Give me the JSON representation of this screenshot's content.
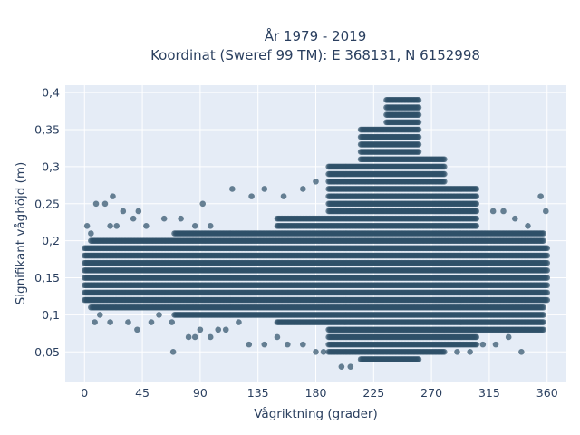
{
  "chart_data": {
    "type": "scatter",
    "title": [
      "År 1979 - 2019",
      "Koordinat (Sweref 99 TM): E 368131, N 6152998"
    ],
    "xlabel": "Vågriktning (grader)",
    "ylabel": "Signifikant våghöjd (m)",
    "xlim": [
      -15,
      375
    ],
    "ylim": [
      0.01,
      0.41
    ],
    "xticks": [
      0,
      45,
      90,
      135,
      180,
      225,
      270,
      315,
      360
    ],
    "xtick_labels": [
      "0",
      "45",
      "90",
      "135",
      "180",
      "225",
      "270",
      "315",
      "360"
    ],
    "yticks": [
      0.05,
      0.1,
      0.15,
      0.2,
      0.25,
      0.3,
      0.35,
      0.4
    ],
    "ytick_labels": [
      "0,05",
      "0,1",
      "0,15",
      "0,2",
      "0,25",
      "0,3",
      "0,35",
      "0,4"
    ],
    "grid": true,
    "colors": {
      "marker": "#2e5068",
      "plot_bg": "#e5ecf6",
      "grid": "#ffffff",
      "text": "#2a3f5f"
    },
    "marker_opacity": 0.7,
    "bands": [
      {
        "from": 0,
        "to": 360,
        "y_min": 0.12,
        "y_max": 0.19
      },
      {
        "from": 5,
        "to": 70,
        "y_min": 0.11,
        "y_max": 0.2
      },
      {
        "from": 70,
        "to": 150,
        "y_min": 0.1,
        "y_max": 0.21
      },
      {
        "from": 150,
        "to": 190,
        "y_min": 0.09,
        "y_max": 0.23
      },
      {
        "from": 190,
        "to": 215,
        "y_min": 0.05,
        "y_max": 0.3
      },
      {
        "from": 215,
        "to": 235,
        "y_min": 0.04,
        "y_max": 0.35
      },
      {
        "from": 235,
        "to": 260,
        "y_min": 0.04,
        "y_max": 0.39
      },
      {
        "from": 260,
        "to": 280,
        "y_min": 0.05,
        "y_max": 0.31
      },
      {
        "from": 280,
        "to": 305,
        "y_min": 0.06,
        "y_max": 0.27
      },
      {
        "from": 305,
        "to": 357,
        "y_min": 0.08,
        "y_max": 0.21
      }
    ],
    "scattered_points": [
      {
        "x": 2,
        "y": 0.22
      },
      {
        "x": 5,
        "y": 0.21
      },
      {
        "x": 9,
        "y": 0.25
      },
      {
        "x": 16,
        "y": 0.25
      },
      {
        "x": 22,
        "y": 0.26
      },
      {
        "x": 20,
        "y": 0.22
      },
      {
        "x": 25,
        "y": 0.22
      },
      {
        "x": 30,
        "y": 0.24
      },
      {
        "x": 38,
        "y": 0.23
      },
      {
        "x": 42,
        "y": 0.24
      },
      {
        "x": 48,
        "y": 0.22
      },
      {
        "x": 62,
        "y": 0.23
      },
      {
        "x": 75,
        "y": 0.23
      },
      {
        "x": 86,
        "y": 0.22
      },
      {
        "x": 92,
        "y": 0.25
      },
      {
        "x": 98,
        "y": 0.22
      },
      {
        "x": 115,
        "y": 0.27
      },
      {
        "x": 130,
        "y": 0.26
      },
      {
        "x": 140,
        "y": 0.27
      },
      {
        "x": 155,
        "y": 0.26
      },
      {
        "x": 170,
        "y": 0.27
      },
      {
        "x": 180,
        "y": 0.28
      },
      {
        "x": 290,
        "y": 0.27
      },
      {
        "x": 300,
        "y": 0.26
      },
      {
        "x": 318,
        "y": 0.24
      },
      {
        "x": 326,
        "y": 0.24
      },
      {
        "x": 335,
        "y": 0.23
      },
      {
        "x": 345,
        "y": 0.22
      },
      {
        "x": 355,
        "y": 0.26
      },
      {
        "x": 359,
        "y": 0.24
      },
      {
        "x": 8,
        "y": 0.09
      },
      {
        "x": 12,
        "y": 0.1
      },
      {
        "x": 20,
        "y": 0.09
      },
      {
        "x": 34,
        "y": 0.09
      },
      {
        "x": 41,
        "y": 0.08
      },
      {
        "x": 52,
        "y": 0.09
      },
      {
        "x": 58,
        "y": 0.1
      },
      {
        "x": 68,
        "y": 0.09
      },
      {
        "x": 69,
        "y": 0.05
      },
      {
        "x": 81,
        "y": 0.07
      },
      {
        "x": 86,
        "y": 0.07
      },
      {
        "x": 90,
        "y": 0.08
      },
      {
        "x": 98,
        "y": 0.07
      },
      {
        "x": 104,
        "y": 0.08
      },
      {
        "x": 110,
        "y": 0.08
      },
      {
        "x": 120,
        "y": 0.09
      },
      {
        "x": 128,
        "y": 0.06
      },
      {
        "x": 140,
        "y": 0.06
      },
      {
        "x": 150,
        "y": 0.07
      },
      {
        "x": 158,
        "y": 0.06
      },
      {
        "x": 170,
        "y": 0.06
      },
      {
        "x": 180,
        "y": 0.05
      },
      {
        "x": 186,
        "y": 0.05
      },
      {
        "x": 200,
        "y": 0.03
      },
      {
        "x": 207,
        "y": 0.03
      },
      {
        "x": 215,
        "y": 0.04
      },
      {
        "x": 280,
        "y": 0.05
      },
      {
        "x": 290,
        "y": 0.05
      },
      {
        "x": 300,
        "y": 0.05
      },
      {
        "x": 310,
        "y": 0.06
      },
      {
        "x": 320,
        "y": 0.06
      },
      {
        "x": 330,
        "y": 0.07
      },
      {
        "x": 340,
        "y": 0.05
      },
      {
        "x": 345,
        "y": 0.08
      },
      {
        "x": 350,
        "y": 0.09
      },
      {
        "x": 356,
        "y": 0.1
      }
    ],
    "legend": "none"
  }
}
